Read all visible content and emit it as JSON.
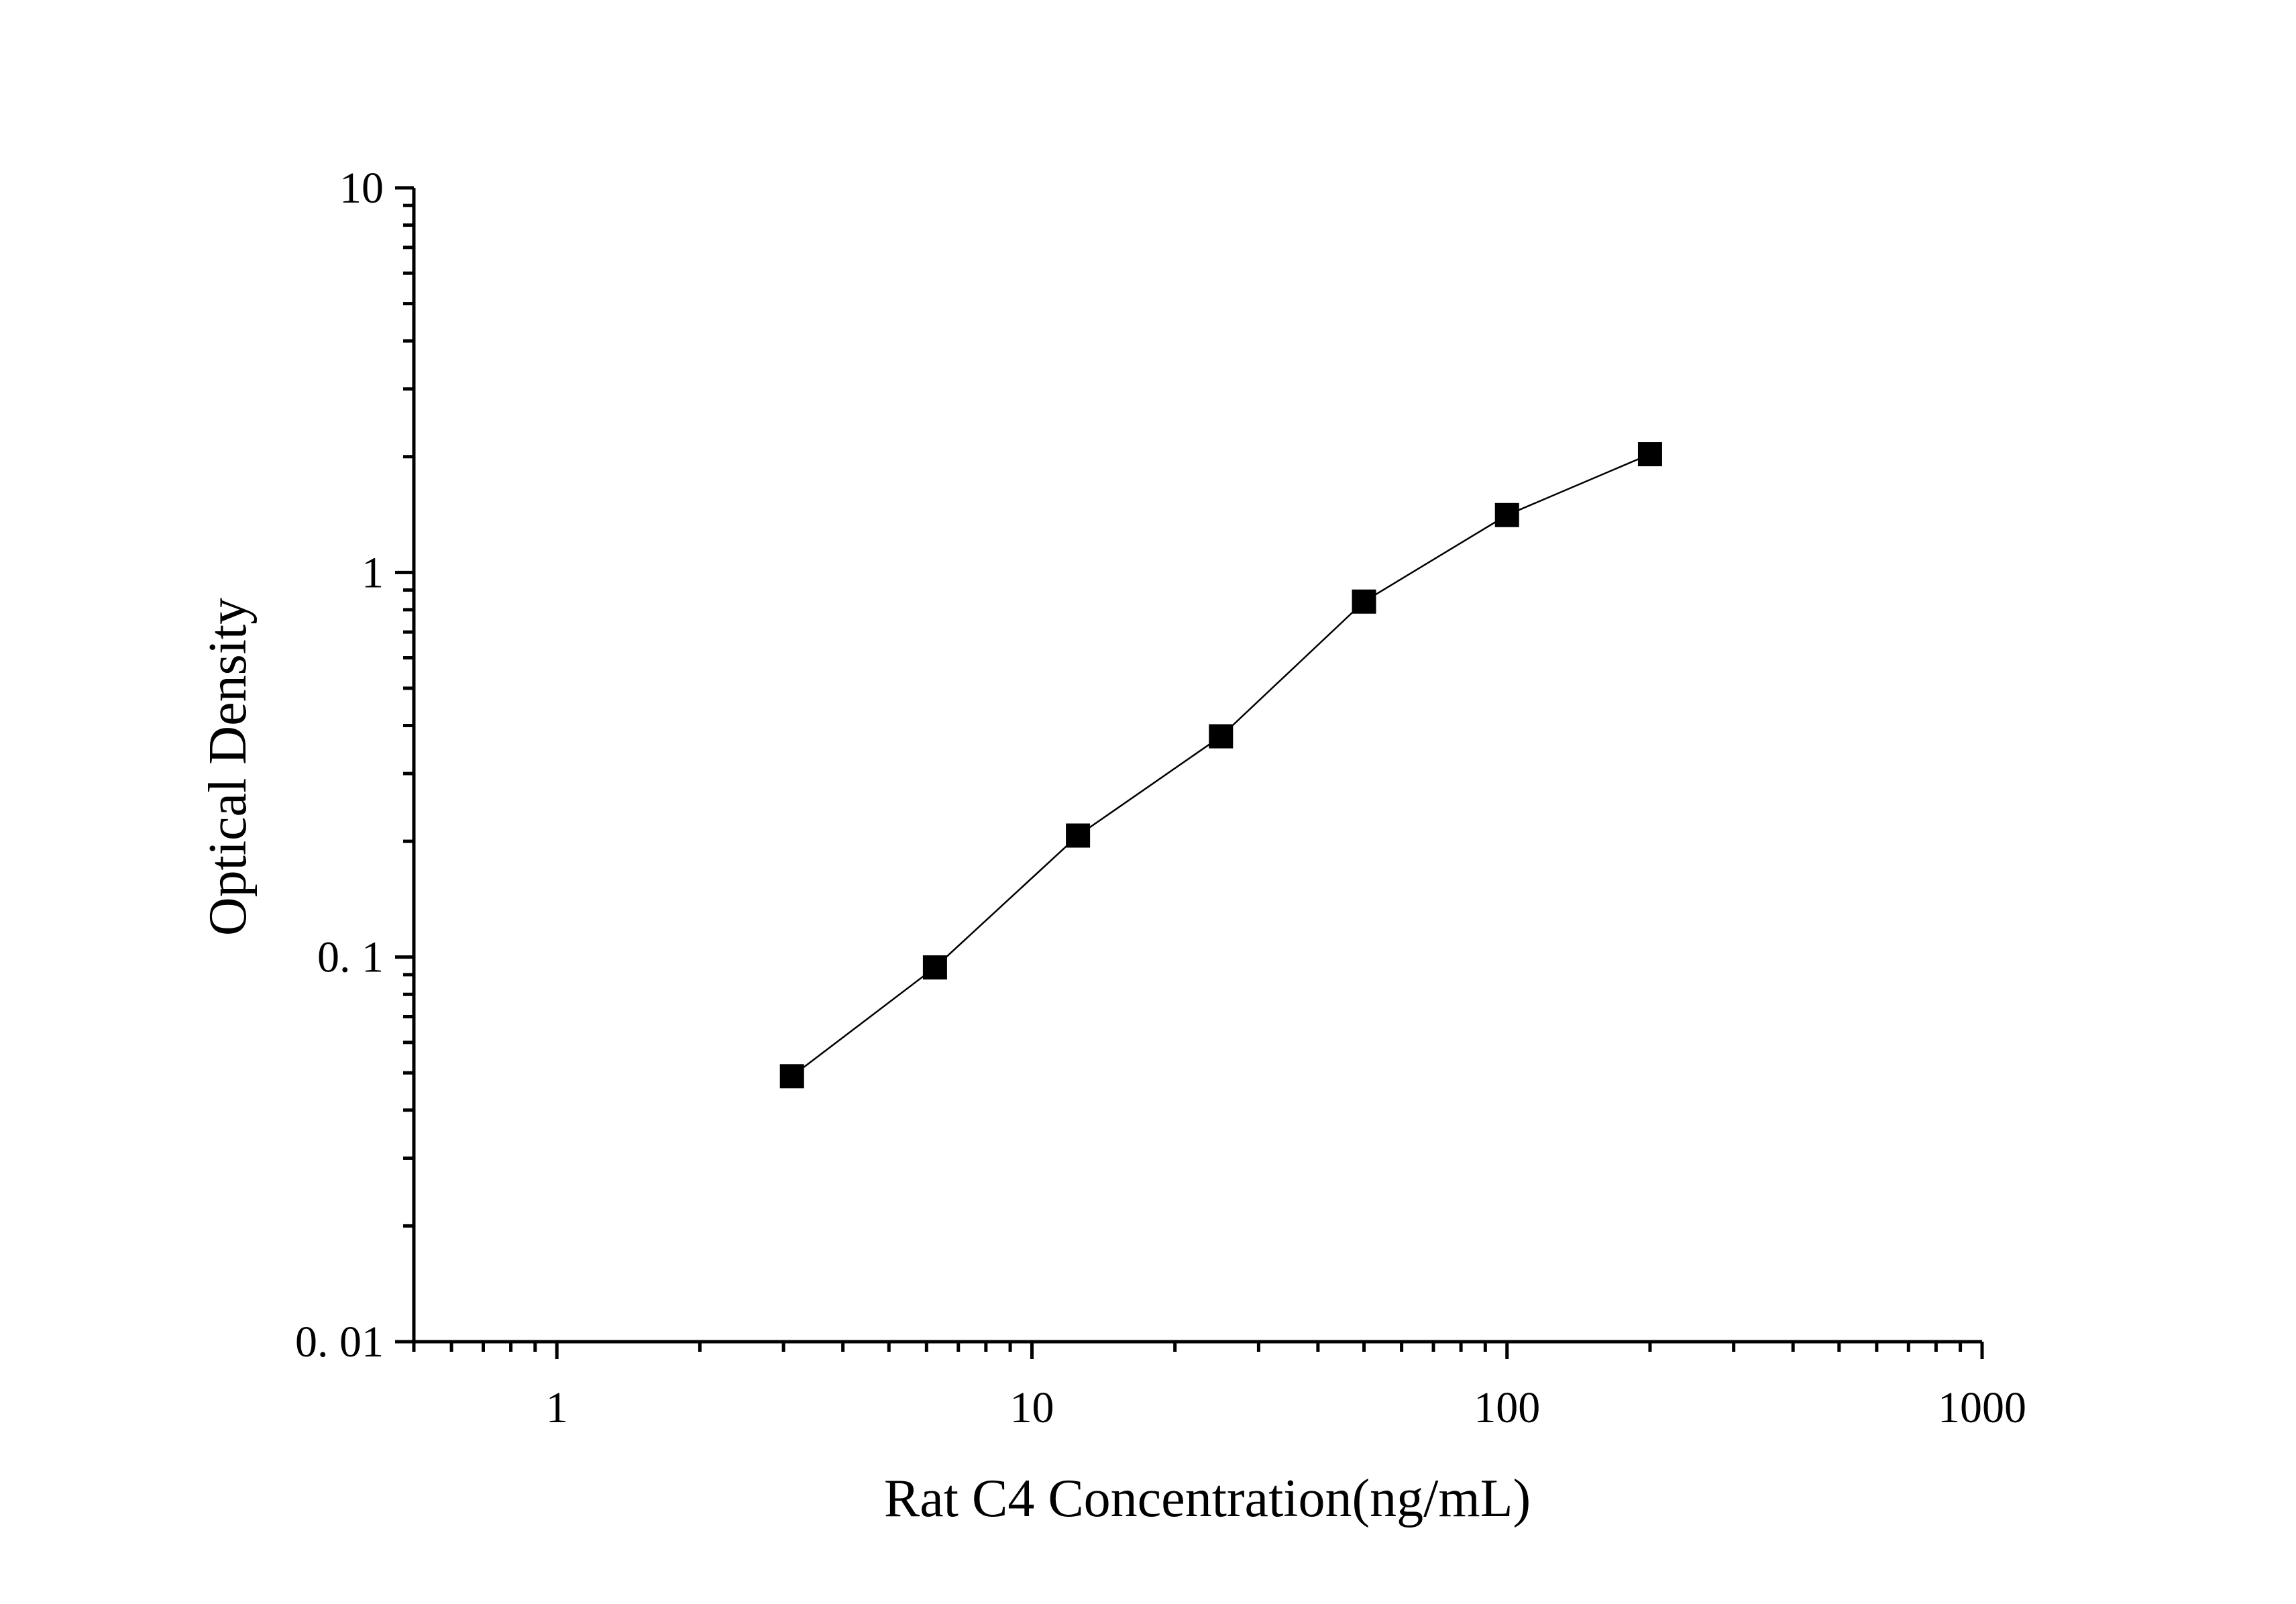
{
  "chart_data": {
    "type": "scatter",
    "xlabel": "Rat C4 Concentration(ng/mL)",
    "ylabel": "Optical Density",
    "xscale": "log",
    "yscale": "log",
    "xlim": [
      0.5,
      1000
    ],
    "ylim": [
      0.01,
      10
    ],
    "x_tick_labels": [
      "1",
      "10",
      "100",
      "1000"
    ],
    "y_tick_labels": [
      "0. 01",
      "0. 1",
      "1",
      "10"
    ],
    "grid": false,
    "legend": false,
    "marker": "square",
    "line_connects_points": true,
    "series": [
      {
        "x": [
          3.125,
          6.25,
          12.5,
          25,
          50,
          100,
          200
        ],
        "y": [
          0.049,
          0.094,
          0.207,
          0.375,
          0.84,
          1.41,
          2.03
        ]
      }
    ]
  },
  "colors": {
    "axis": "#000000",
    "marker": "#000000",
    "line": "#000000",
    "background": "#ffffff"
  }
}
